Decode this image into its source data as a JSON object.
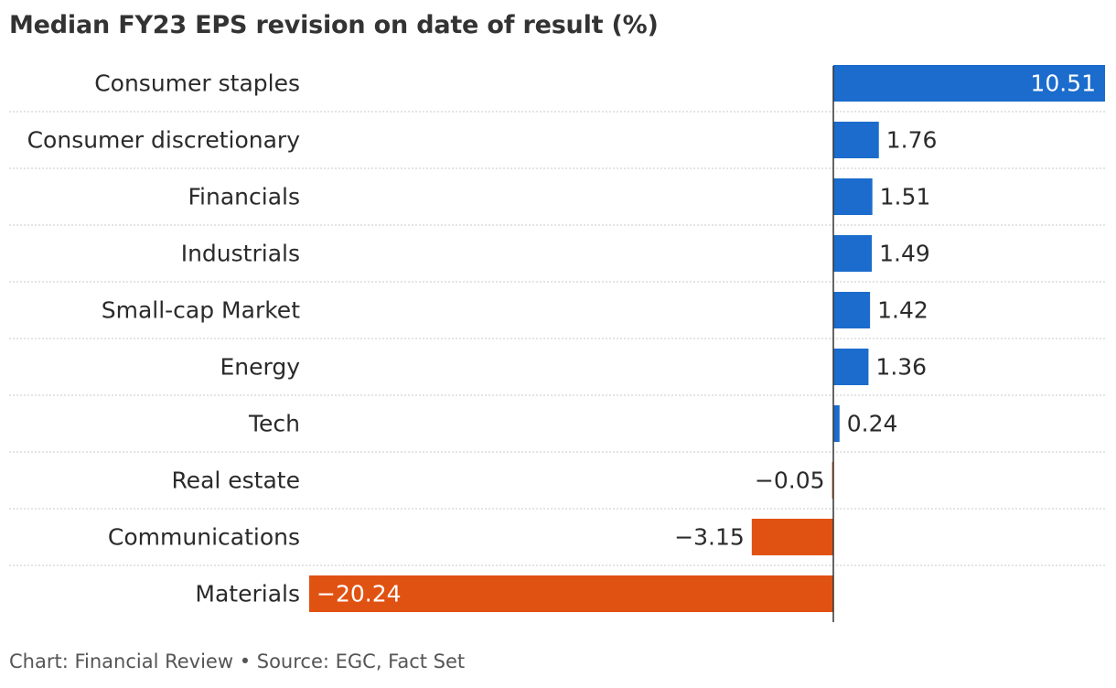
{
  "chart_data": {
    "type": "bar",
    "orientation": "horizontal",
    "title": "Median FY23 EPS revision on date of result (%)",
    "categories": [
      "Consumer staples",
      "Consumer discretionary",
      "Financials",
      "Industrials",
      "Small-cap Market",
      "Energy",
      "Tech",
      "Real estate",
      "Communications",
      "Materials"
    ],
    "values": [
      10.51,
      1.76,
      1.51,
      1.49,
      1.42,
      1.36,
      0.24,
      -0.05,
      -3.15,
      -20.24
    ],
    "value_labels": [
      "10.51",
      "1.76",
      "1.51",
      "1.49",
      "1.42",
      "1.36",
      "0.24",
      "−0.05",
      "−3.15",
      "−20.24"
    ],
    "xlim": [
      -20.24,
      10.51
    ],
    "grid": "dotted row separators",
    "legend": "none",
    "colors": {
      "positive": "#1b6ccc",
      "negative": "#e05212"
    }
  },
  "footer": "Chart: Financial Review • Source: EGC, Fact Set"
}
